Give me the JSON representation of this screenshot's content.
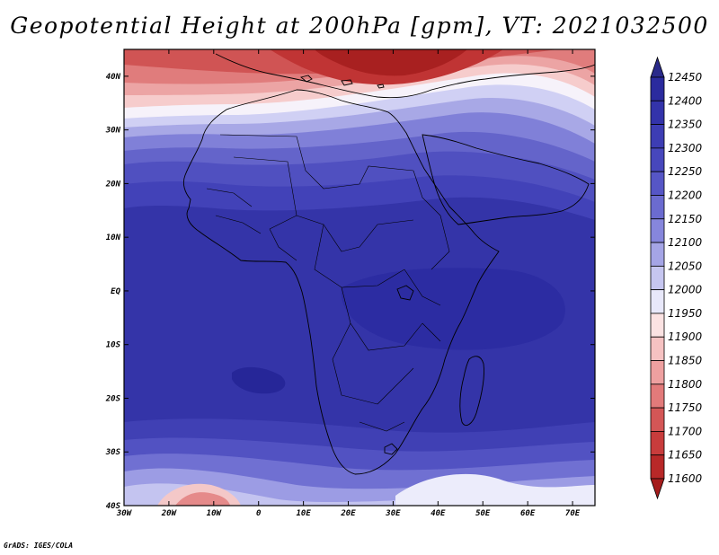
{
  "title": "Geopotential Height at 200hPa [gpm], VT: 2021032500",
  "credit": "GrADS: IGES/COLA",
  "map": {
    "projection": "latlon",
    "lon_range": [
      -30,
      75
    ],
    "lat_range": [
      -40,
      45
    ],
    "lon_ticks": [
      {
        "value": -30,
        "label": "30W"
      },
      {
        "value": -20,
        "label": "20W"
      },
      {
        "value": -10,
        "label": "10W"
      },
      {
        "value": 0,
        "label": "0"
      },
      {
        "value": 10,
        "label": "10E"
      },
      {
        "value": 20,
        "label": "20E"
      },
      {
        "value": 30,
        "label": "30E"
      },
      {
        "value": 40,
        "label": "40E"
      },
      {
        "value": 50,
        "label": "50E"
      },
      {
        "value": 60,
        "label": "60E"
      },
      {
        "value": 70,
        "label": "70E"
      }
    ],
    "lat_ticks": [
      {
        "value": 40,
        "label": "40N"
      },
      {
        "value": 30,
        "label": "30N"
      },
      {
        "value": 20,
        "label": "20N"
      },
      {
        "value": 10,
        "label": "10N"
      },
      {
        "value": 0,
        "label": "EQ"
      },
      {
        "value": -10,
        "label": "10S"
      },
      {
        "value": -20,
        "label": "20S"
      },
      {
        "value": -30,
        "label": "30S"
      },
      {
        "value": -40,
        "label": "40S"
      }
    ]
  },
  "colorbar": {
    "levels": [
      12450,
      12400,
      12350,
      12300,
      12250,
      12200,
      12150,
      12100,
      12050,
      12000,
      11950,
      11900,
      11850,
      11800,
      11750,
      11700,
      11650,
      11600
    ],
    "colors": [
      "#2a2a8a",
      "#2b2b9e",
      "#3333aa",
      "#3d3db4",
      "#4747bc",
      "#5656c6",
      "#6b6bd0",
      "#8686dc",
      "#a5a5e6",
      "#c6c6f0",
      "#e8e8fa",
      "#fbe2e2",
      "#f6c2c2",
      "#eea0a0",
      "#e27a7a",
      "#d45656",
      "#c83c3c",
      "#b82828",
      "#a51c1c"
    ]
  }
}
